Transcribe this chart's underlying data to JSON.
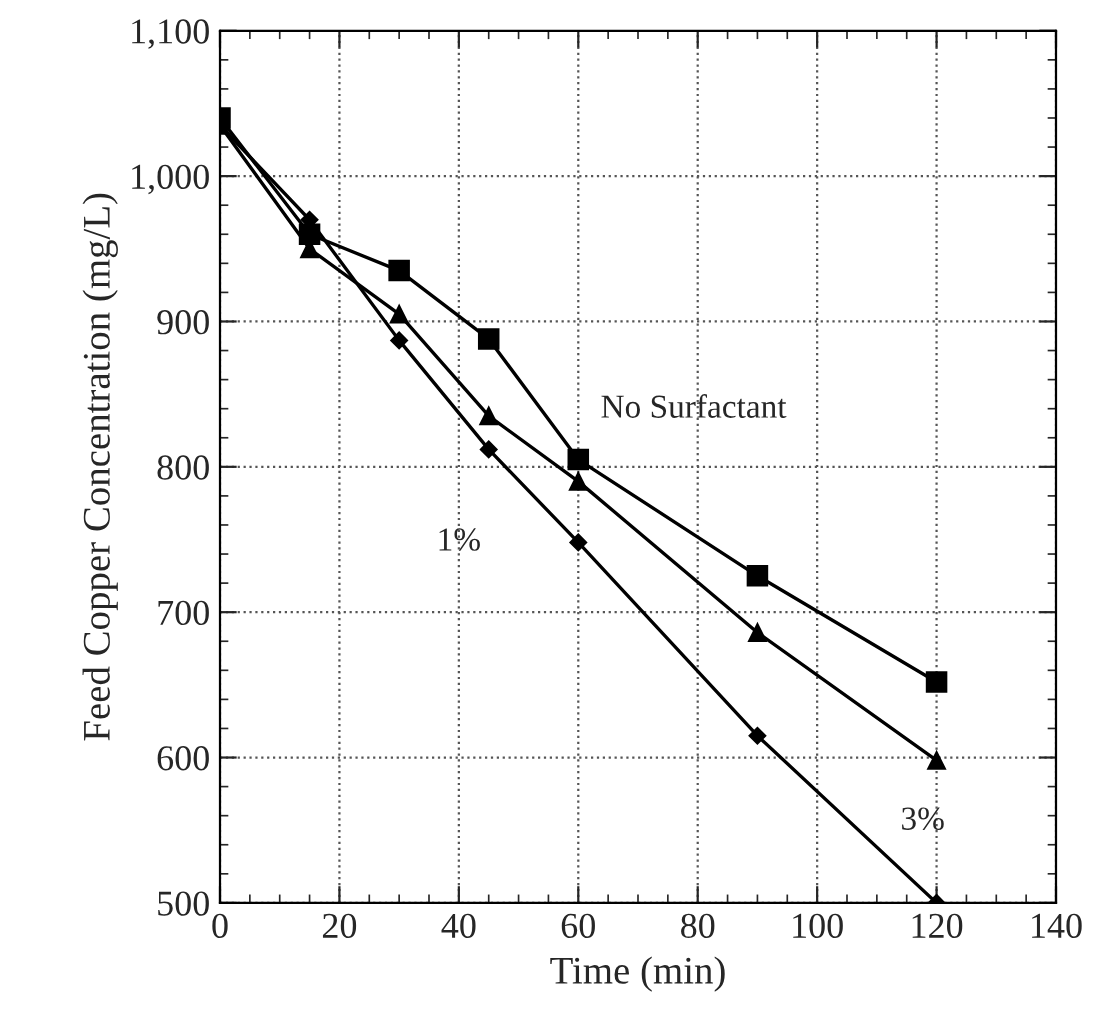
{
  "chart_data": {
    "type": "line",
    "xlabel": "Time (min)",
    "ylabel": "Feed Copper Concentration (mg/L)",
    "x": [
      0,
      15,
      30,
      45,
      60,
      90,
      120
    ],
    "series": [
      {
        "name": "No Surfactant",
        "color": "#000000",
        "marker": "square",
        "values": [
          1040,
          960,
          935,
          888,
          805,
          725,
          652
        ]
      },
      {
        "name": "3%",
        "color": "#000000",
        "marker": "triangle",
        "values": [
          1035,
          950,
          905,
          835,
          790,
          686,
          598
        ]
      },
      {
        "name": "1%",
        "color": "#000000",
        "marker": "diamond",
        "values": [
          1035,
          970,
          887,
          812,
          748,
          615,
          500
        ]
      }
    ],
    "xlim": [
      0,
      140
    ],
    "xticks": [
      0,
      20,
      40,
      60,
      80,
      100,
      120,
      140
    ],
    "ylim": [
      500,
      1100
    ],
    "yticks": [
      500,
      600,
      700,
      800,
      900,
      {
        "value": 1000,
        "label": "1,000"
      },
      {
        "value": 1100,
        "label": "1,100"
      }
    ],
    "grid": true,
    "line_style": "solid",
    "legend": false
  }
}
